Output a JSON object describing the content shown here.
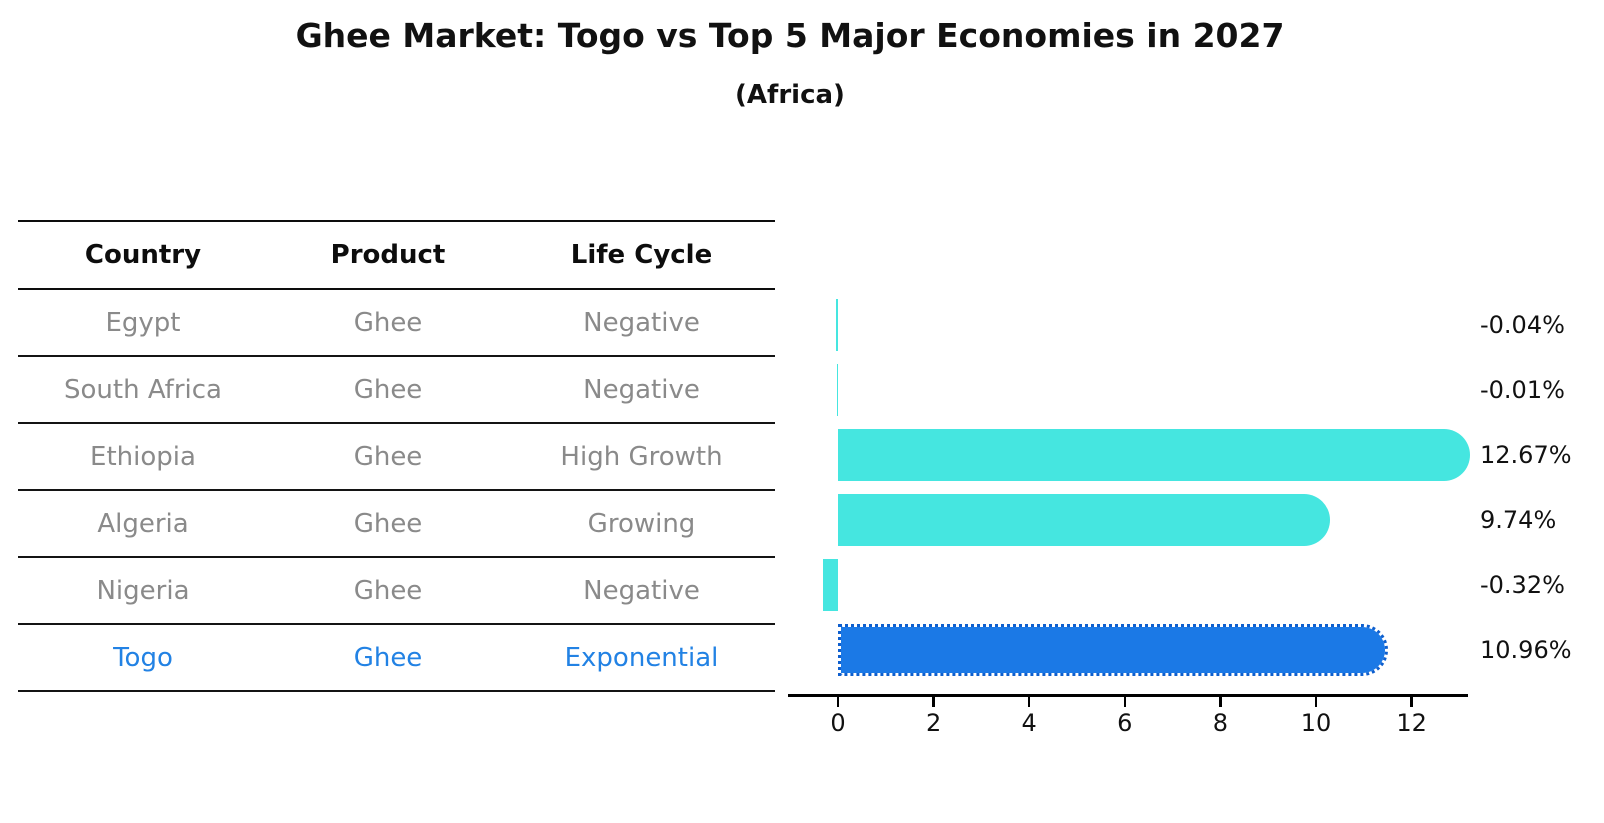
{
  "chart_data": {
    "type": "bar",
    "orientation": "horizontal",
    "title": "Ghee Market: Togo vs Top 5 Major Economies in 2027",
    "subtitle": "(Africa)",
    "categories": [
      "Egypt",
      "South Africa",
      "Ethiopia",
      "Algeria",
      "Nigeria",
      "Togo"
    ],
    "values": [
      -0.04,
      -0.01,
      12.67,
      9.74,
      -0.32,
      10.96
    ],
    "value_labels": [
      "-0.04%",
      "-0.01%",
      "12.67%",
      "9.74%",
      "-0.32%",
      "10.96%"
    ],
    "x_ticks": [
      0,
      2,
      4,
      6,
      8,
      10,
      12
    ],
    "xlim": [
      -1.05,
      13.5
    ],
    "ylabel": "",
    "xlabel": "",
    "grid": false,
    "legend": "none",
    "highlight_index": 5
  },
  "table": {
    "headers": [
      "Country",
      "Product",
      "Life Cycle"
    ],
    "rows": [
      {
        "country": "Egypt",
        "product": "Ghee",
        "life_cycle": "Negative",
        "highlighted": false
      },
      {
        "country": "South Africa",
        "product": "Ghee",
        "life_cycle": "Negative",
        "highlighted": false
      },
      {
        "country": "Ethiopia",
        "product": "Ghee",
        "life_cycle": "High Growth",
        "highlighted": false
      },
      {
        "country": "Algeria",
        "product": "Ghee",
        "life_cycle": "Growing",
        "highlighted": false
      },
      {
        "country": "Nigeria",
        "product": "Ghee",
        "life_cycle": "Negative",
        "highlighted": false
      },
      {
        "country": "Togo",
        "product": "Ghee",
        "life_cycle": "Exponential",
        "highlighted": true
      }
    ]
  },
  "colors": {
    "bar_default": "#45E6E0",
    "bar_highlight": "#1B79E6",
    "bar_highlight_border": "#0E5FCE",
    "highlight_text": "#2282E4",
    "table_text": "#8A8A8A",
    "axis": "#000000"
  }
}
